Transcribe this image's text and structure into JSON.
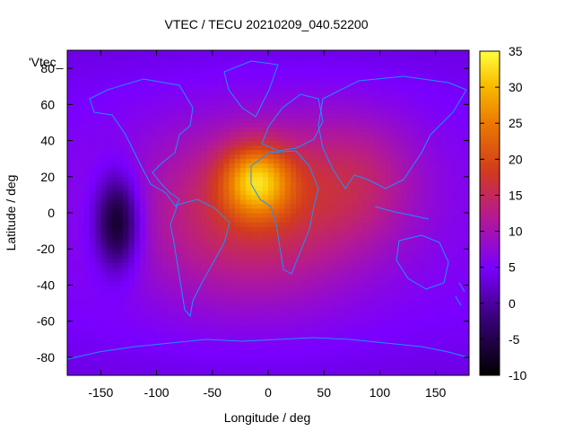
{
  "chart_data": {
    "type": "heatmap",
    "title": "VTEC / TECU 20210209_040.52200",
    "xlabel": "Longitude / deg",
    "ylabel": "Latitude / deg",
    "xlim": [
      -180,
      180
    ],
    "ylim": [
      -90,
      90
    ],
    "xticks": [
      "-150",
      "-100",
      "-50",
      "0",
      "50",
      "100",
      "150"
    ],
    "yticks": [
      "-80",
      "-60",
      "-40",
      "-20",
      "0",
      "20",
      "40",
      "60",
      "80"
    ],
    "xtick_values": [
      -150,
      -100,
      -50,
      0,
      50,
      100,
      150
    ],
    "ytick_values": [
      -80,
      -60,
      -40,
      -20,
      0,
      20,
      40,
      60,
      80
    ],
    "colorbar": {
      "range": [
        -10,
        35
      ],
      "ticks": [
        "-10",
        "-5",
        "0",
        "5",
        "10",
        "15",
        "20",
        "25",
        "30",
        "35"
      ],
      "tick_values": [
        -10,
        -5,
        0,
        5,
        10,
        15,
        20,
        25,
        30,
        35
      ]
    },
    "legend_label": "'Vtec_",
    "grid": false,
    "field_features": [
      {
        "type": "max",
        "lon": -10,
        "lat": 18,
        "value": 34,
        "note": "peak over west Africa"
      },
      {
        "type": "min",
        "lon": -135,
        "lat": -5,
        "value": -9,
        "note": "depletion over east Pacific"
      }
    ],
    "background_value": 5.5
  }
}
